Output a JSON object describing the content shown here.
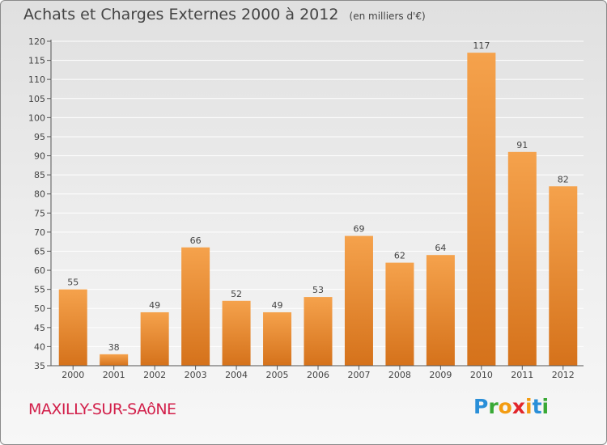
{
  "header": {
    "title": "Achats et Charges Externes 2000 à 2012",
    "subtitle": "(en milliers d'€)"
  },
  "footer": {
    "place": "MAXILLY-SUR-SAôNE",
    "logo_letters": [
      "P",
      "r",
      "o",
      "x",
      "i",
      "t",
      "i"
    ],
    "logo_colors": [
      "#2a8fd8",
      "#39a935",
      "#f39c12",
      "#e2262b",
      "#f39c12",
      "#2a8fd8",
      "#39a935"
    ]
  },
  "colors": {
    "bar_top": "#f5a24c",
    "bar_bottom": "#d5721b",
    "axis": "#555555",
    "grid": "#ffffff"
  },
  "chart_data": {
    "type": "bar",
    "title": "Achats et Charges Externes 2000 à 2012",
    "subtitle": "(en milliers d'€)",
    "categories": [
      "2000",
      "2001",
      "2002",
      "2003",
      "2004",
      "2005",
      "2006",
      "2007",
      "2008",
      "2009",
      "2010",
      "2011",
      "2012"
    ],
    "values": [
      55,
      38,
      49,
      66,
      52,
      49,
      53,
      69,
      62,
      64,
      117,
      91,
      82
    ],
    "ylim": [
      35,
      120
    ],
    "yticks": [
      35,
      40,
      45,
      50,
      55,
      60,
      65,
      70,
      75,
      80,
      85,
      90,
      95,
      100,
      105,
      110,
      115,
      120
    ],
    "grid": true,
    "data_labels": true
  }
}
